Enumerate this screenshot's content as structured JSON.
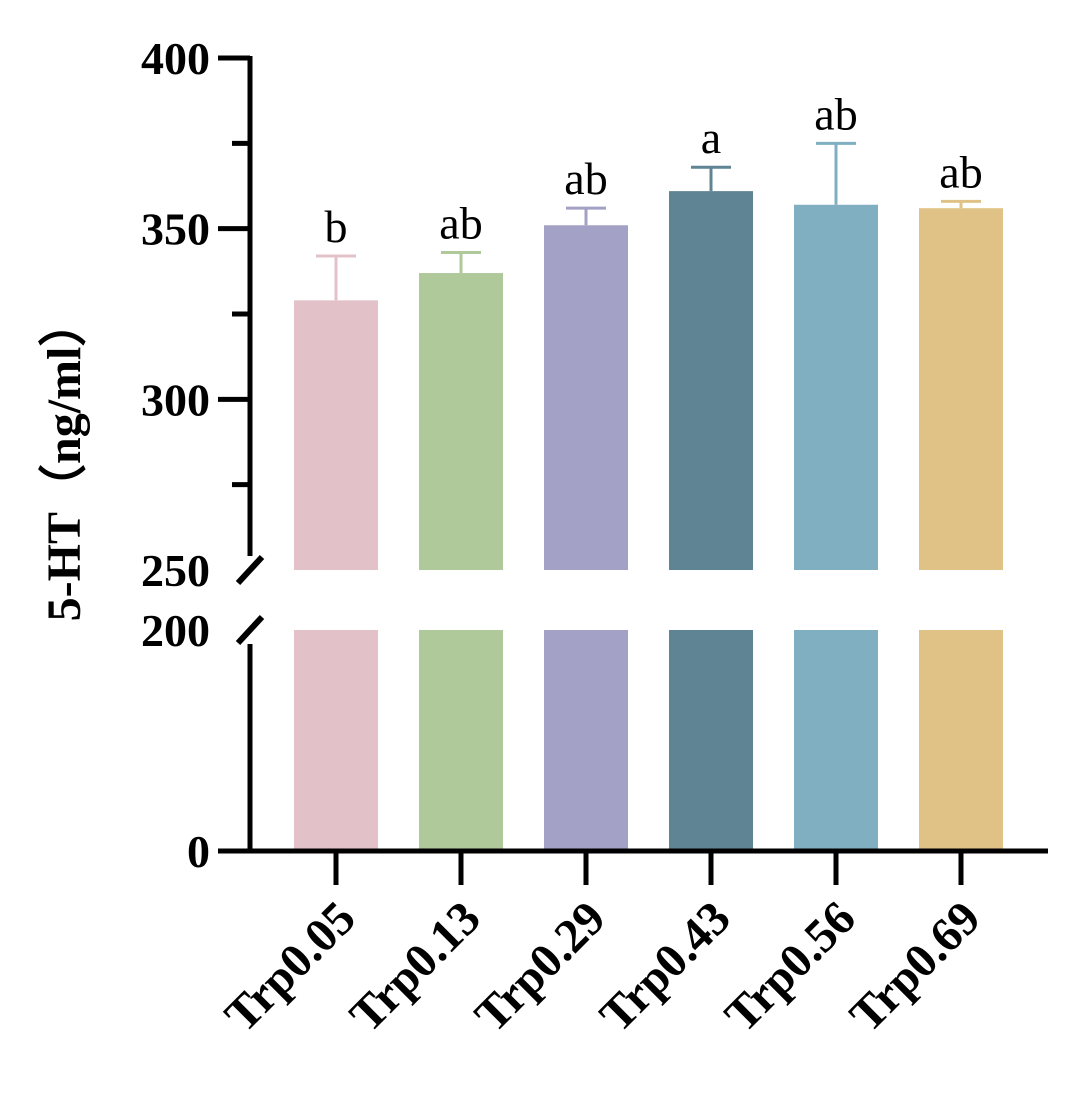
{
  "chart_data": {
    "type": "bar",
    "ylabel": "5-HT（ng/ml）",
    "categories": [
      "Trp0.05",
      "Trp0.13",
      "Trp0.29",
      "Trp0.43",
      "Trp0.56",
      "Trp0.69"
    ],
    "series": [
      {
        "values": [
          329,
          337,
          351,
          361,
          357,
          356
        ],
        "errors": [
          13,
          6,
          5,
          7,
          18,
          2
        ],
        "significance": [
          "b",
          "ab",
          "ab",
          "a",
          "ab",
          "ab"
        ],
        "colors": [
          "#e3c1c9",
          "#afc99b",
          "#a3a1c5",
          "#5f8494",
          "#7fafc0",
          "#e0c286"
        ]
      }
    ],
    "y_axis": {
      "broken": true,
      "break_between": [
        200,
        250
      ],
      "lower_range": [
        0,
        200
      ],
      "upper_range": [
        250,
        400
      ],
      "tick_labels": [
        "0",
        "200",
        "250",
        "300",
        "350",
        "400"
      ]
    },
    "legend": "none",
    "grid": false
  }
}
